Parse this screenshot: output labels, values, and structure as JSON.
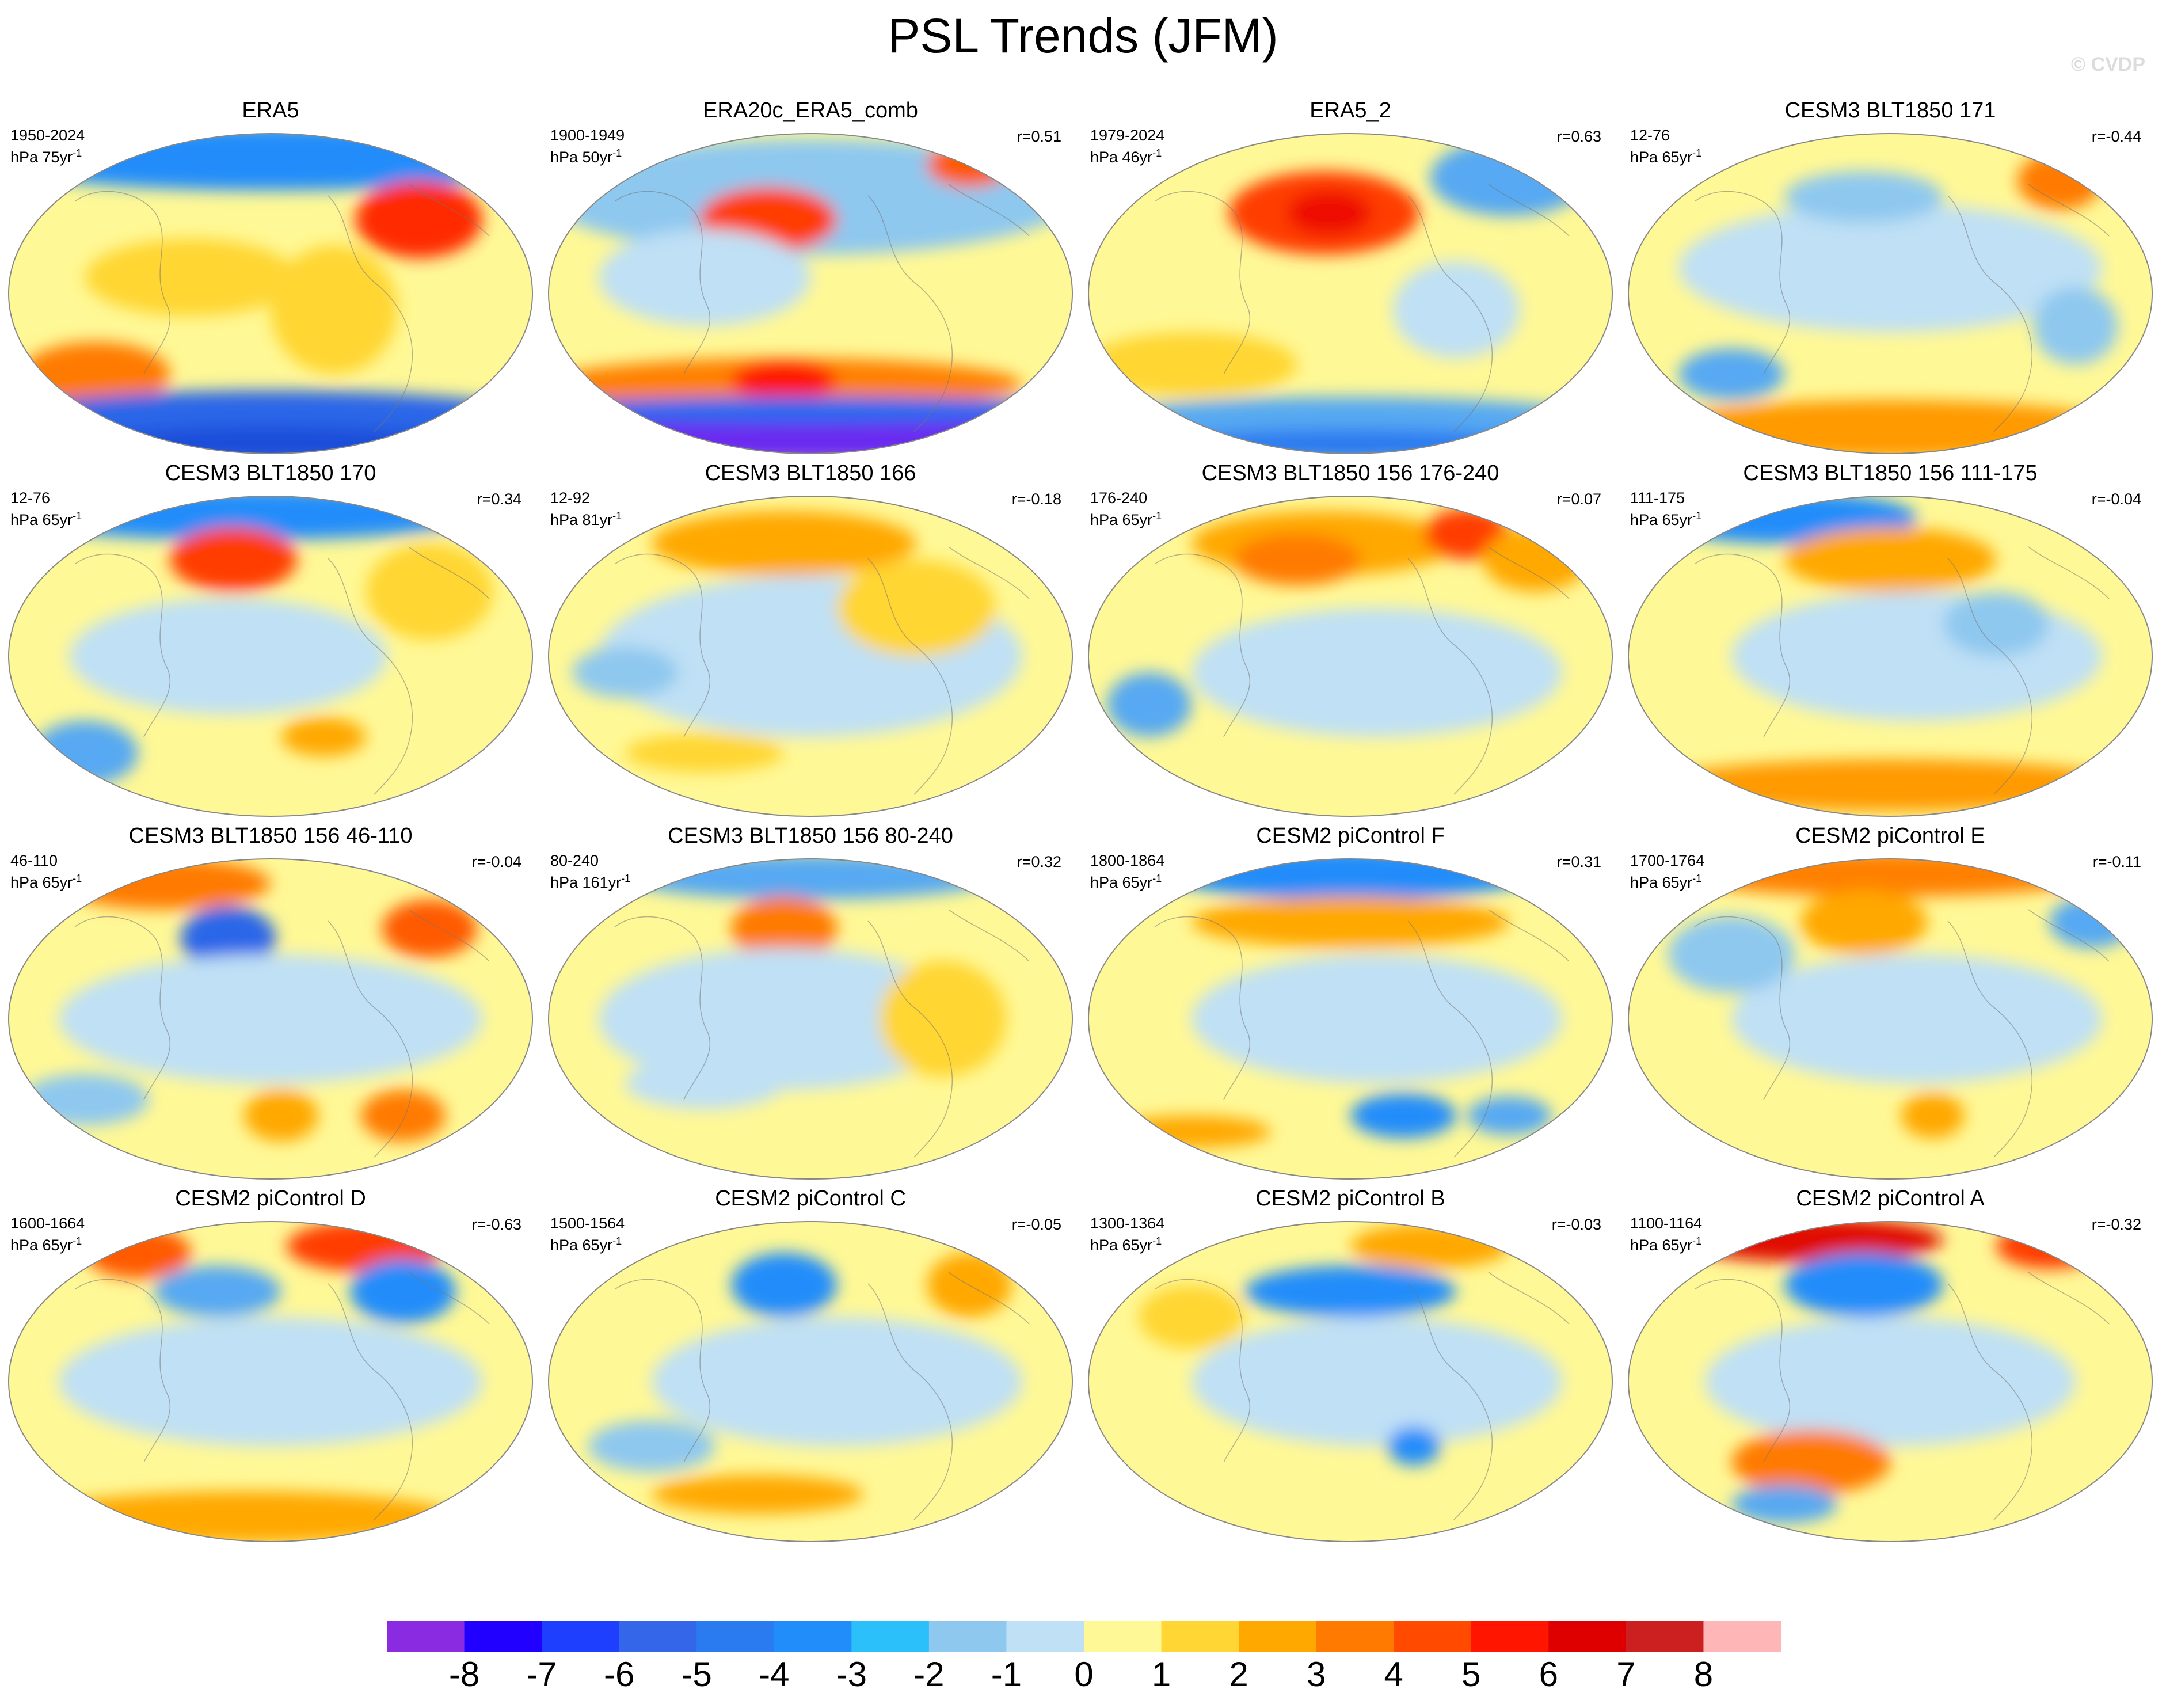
{
  "title": "PSL Trends (JFM)",
  "watermark": "© CVDP",
  "panels": [
    {
      "title": "ERA5",
      "years": "1950-2024",
      "unit_base": "hPa 75yr",
      "unit_exp": "-1",
      "r": "",
      "blobs": [
        [
          0.5,
          0.08,
          0.55,
          0.1,
          "#218dfa"
        ],
        [
          0.78,
          0.27,
          0.12,
          0.12,
          "#ff2b00"
        ],
        [
          0.17,
          0.75,
          0.14,
          0.1,
          "#ff7a00"
        ],
        [
          0.5,
          0.9,
          0.55,
          0.1,
          "#2966e8"
        ],
        [
          0.5,
          0.97,
          0.35,
          0.06,
          "#1f4dd9"
        ],
        [
          0.35,
          0.45,
          0.2,
          0.12,
          "#ffd633"
        ],
        [
          0.62,
          0.55,
          0.12,
          0.2,
          "#ffd633"
        ]
      ]
    },
    {
      "title": "ERA20c_ERA5_comb",
      "years": "1900-1949",
      "unit_base": "hPa 50yr",
      "unit_exp": "-1",
      "r": "r=0.51",
      "blobs": [
        [
          0.5,
          0.2,
          0.5,
          0.18,
          "#8ec8ef"
        ],
        [
          0.42,
          0.27,
          0.13,
          0.1,
          "#ff3d00"
        ],
        [
          0.8,
          0.1,
          0.08,
          0.07,
          "#ff5a00"
        ],
        [
          0.3,
          0.45,
          0.2,
          0.15,
          "#bfe0f5"
        ],
        [
          0.45,
          0.78,
          0.45,
          0.08,
          "#ff8000"
        ],
        [
          0.45,
          0.77,
          0.1,
          0.06,
          "#ff1500"
        ],
        [
          0.5,
          0.94,
          0.55,
          0.08,
          "#6a2cf0"
        ],
        [
          0.5,
          0.86,
          0.55,
          0.04,
          "#1f6bf0"
        ]
      ]
    },
    {
      "title": "ERA5_2",
      "years": "1979-2024",
      "unit_base": "hPa 46yr",
      "unit_exp": "-1",
      "r": "r=0.63",
      "blobs": [
        [
          0.45,
          0.25,
          0.18,
          0.13,
          "#ff3d00"
        ],
        [
          0.46,
          0.25,
          0.08,
          0.07,
          "#ee1000"
        ],
        [
          0.8,
          0.14,
          0.15,
          0.12,
          "#56a9f2"
        ],
        [
          0.2,
          0.72,
          0.2,
          0.1,
          "#ffd633"
        ],
        [
          0.5,
          0.9,
          0.5,
          0.08,
          "#56a9f2"
        ],
        [
          0.5,
          0.97,
          0.35,
          0.05,
          "#2a7af0"
        ],
        [
          0.7,
          0.55,
          0.12,
          0.15,
          "#bfe0f5"
        ]
      ]
    },
    {
      "title": "CESM3 BLT1850 171",
      "years": "12-76",
      "unit_base": "hPa 65yr",
      "unit_exp": "-1",
      "r": "r=-0.44",
      "blobs": [
        [
          0.5,
          0.42,
          0.4,
          0.2,
          "#bfe0f5"
        ],
        [
          0.82,
          0.15,
          0.08,
          0.09,
          "#ff7a00"
        ],
        [
          0.2,
          0.75,
          0.1,
          0.08,
          "#56a9f2"
        ],
        [
          0.5,
          0.92,
          0.45,
          0.09,
          "#ff9a00"
        ],
        [
          0.45,
          0.2,
          0.15,
          0.08,
          "#8ec8ef"
        ],
        [
          0.85,
          0.6,
          0.08,
          0.12,
          "#8ec8ef"
        ]
      ]
    },
    {
      "title": "CESM3 BLT1850 170",
      "years": "12-76",
      "unit_base": "hPa 65yr",
      "unit_exp": "-1",
      "r": "r=0.34",
      "blobs": [
        [
          0.45,
          0.06,
          0.45,
          0.08,
          "#218dfa"
        ],
        [
          0.43,
          0.2,
          0.12,
          0.1,
          "#ff3d00"
        ],
        [
          0.42,
          0.5,
          0.3,
          0.18,
          "#bfe0f5"
        ],
        [
          0.15,
          0.8,
          0.1,
          0.1,
          "#56a9f2"
        ],
        [
          0.6,
          0.75,
          0.08,
          0.06,
          "#ffa800"
        ],
        [
          0.8,
          0.3,
          0.12,
          0.15,
          "#ffd633"
        ]
      ]
    },
    {
      "title": "CESM3 BLT1850 166",
      "years": "12-92",
      "unit_base": "hPa 81yr",
      "unit_exp": "-1",
      "r": "r=-0.18",
      "blobs": [
        [
          0.45,
          0.15,
          0.25,
          0.1,
          "#ffa800"
        ],
        [
          0.5,
          0.5,
          0.4,
          0.25,
          "#bfe0f5"
        ],
        [
          0.15,
          0.55,
          0.1,
          0.08,
          "#8ec8ef"
        ],
        [
          0.3,
          0.8,
          0.15,
          0.06,
          "#ffd633"
        ],
        [
          0.7,
          0.35,
          0.15,
          0.15,
          "#ffd633"
        ]
      ]
    },
    {
      "title": "CESM3 BLT1850 156 176-240",
      "years": "176-240",
      "unit_base": "hPa 65yr",
      "unit_exp": "-1",
      "r": "r=0.07",
      "blobs": [
        [
          0.45,
          0.15,
          0.25,
          0.1,
          "#ffa800"
        ],
        [
          0.72,
          0.12,
          0.08,
          0.08,
          "#ff3d00"
        ],
        [
          0.55,
          0.55,
          0.35,
          0.2,
          "#bfe0f5"
        ],
        [
          0.12,
          0.65,
          0.08,
          0.1,
          "#56a9f2"
        ],
        [
          0.4,
          0.2,
          0.12,
          0.08,
          "#ff7a00"
        ],
        [
          0.85,
          0.2,
          0.1,
          0.1,
          "#ffa800"
        ]
      ]
    },
    {
      "title": "CESM3 BLT1850 156 111-175",
      "years": "111-175",
      "unit_base": "hPa 65yr",
      "unit_exp": "-1",
      "r": "r=-0.04",
      "blobs": [
        [
          0.3,
          0.07,
          0.25,
          0.08,
          "#218dfa"
        ],
        [
          0.5,
          0.2,
          0.2,
          0.1,
          "#ffa800"
        ],
        [
          0.55,
          0.5,
          0.35,
          0.2,
          "#bfe0f5"
        ],
        [
          0.5,
          0.9,
          0.45,
          0.08,
          "#ff9a00"
        ],
        [
          0.7,
          0.4,
          0.1,
          0.1,
          "#8ec8ef"
        ]
      ]
    },
    {
      "title": "CESM3 BLT1850 156 46-110",
      "years": "46-110",
      "unit_base": "hPa 65yr",
      "unit_exp": "-1",
      "r": "r=-0.04",
      "blobs": [
        [
          0.3,
          0.08,
          0.2,
          0.08,
          "#ff7a00"
        ],
        [
          0.42,
          0.25,
          0.09,
          0.1,
          "#2966e8"
        ],
        [
          0.8,
          0.22,
          0.09,
          0.09,
          "#ff5a00"
        ],
        [
          0.5,
          0.5,
          0.4,
          0.2,
          "#bfe0f5"
        ],
        [
          0.52,
          0.8,
          0.07,
          0.08,
          "#ffa800"
        ],
        [
          0.75,
          0.8,
          0.08,
          0.08,
          "#ff7a00"
        ],
        [
          0.15,
          0.75,
          0.12,
          0.08,
          "#8ec8ef"
        ]
      ]
    },
    {
      "title": "CESM3 BLT1850 156 80-240",
      "years": "80-240",
      "unit_base": "hPa 161yr",
      "unit_exp": "-1",
      "r": "r=0.32",
      "blobs": [
        [
          0.5,
          0.06,
          0.35,
          0.07,
          "#56a9f2"
        ],
        [
          0.45,
          0.22,
          0.1,
          0.1,
          "#ff7a00"
        ],
        [
          0.45,
          0.5,
          0.35,
          0.22,
          "#bfe0f5"
        ],
        [
          0.3,
          0.7,
          0.15,
          0.08,
          "#bfe0f5"
        ],
        [
          0.75,
          0.5,
          0.12,
          0.18,
          "#ffd633"
        ]
      ]
    },
    {
      "title": "CESM2 piControl F",
      "years": "1800-1864",
      "unit_base": "hPa 65yr",
      "unit_exp": "-1",
      "r": "r=0.31",
      "blobs": [
        [
          0.5,
          0.05,
          0.35,
          0.08,
          "#218dfa"
        ],
        [
          0.5,
          0.2,
          0.3,
          0.08,
          "#ffa800"
        ],
        [
          0.55,
          0.5,
          0.35,
          0.2,
          "#bfe0f5"
        ],
        [
          0.6,
          0.8,
          0.1,
          0.07,
          "#218dfa"
        ],
        [
          0.8,
          0.8,
          0.08,
          0.06,
          "#56a9f2"
        ],
        [
          0.2,
          0.85,
          0.15,
          0.05,
          "#ffa800"
        ]
      ]
    },
    {
      "title": "CESM2 piControl E",
      "years": "1700-1764",
      "unit_base": "hPa 65yr",
      "unit_exp": "-1",
      "r": "r=-0.11",
      "blobs": [
        [
          0.5,
          0.05,
          0.4,
          0.07,
          "#ff8000"
        ],
        [
          0.88,
          0.2,
          0.08,
          0.08,
          "#56a9f2"
        ],
        [
          0.45,
          0.2,
          0.12,
          0.1,
          "#ffa800"
        ],
        [
          0.55,
          0.5,
          0.35,
          0.2,
          "#bfe0f5"
        ],
        [
          0.58,
          0.8,
          0.06,
          0.07,
          "#ffa800"
        ],
        [
          0.2,
          0.3,
          0.12,
          0.12,
          "#8ec8ef"
        ]
      ]
    },
    {
      "title": "CESM2 piControl D",
      "years": "1600-1664",
      "unit_base": "hPa 65yr",
      "unit_exp": "-1",
      "r": "r=-0.63",
      "blobs": [
        [
          0.25,
          0.1,
          0.1,
          0.08,
          "#ff5a00"
        ],
        [
          0.68,
          0.08,
          0.15,
          0.08,
          "#ff3d00"
        ],
        [
          0.75,
          0.22,
          0.1,
          0.1,
          "#218dfa"
        ],
        [
          0.4,
          0.22,
          0.12,
          0.08,
          "#56a9f2"
        ],
        [
          0.5,
          0.5,
          0.4,
          0.2,
          "#bfe0f5"
        ],
        [
          0.45,
          0.92,
          0.4,
          0.08,
          "#ffa800"
        ]
      ]
    },
    {
      "title": "CESM2 piControl C",
      "years": "1500-1564",
      "unit_base": "hPa 65yr",
      "unit_exp": "-1",
      "r": "r=-0.05",
      "blobs": [
        [
          0.45,
          0.2,
          0.1,
          0.1,
          "#218dfa"
        ],
        [
          0.55,
          0.5,
          0.35,
          0.2,
          "#bfe0f5"
        ],
        [
          0.4,
          0.85,
          0.2,
          0.06,
          "#ffa800"
        ],
        [
          0.8,
          0.2,
          0.08,
          0.1,
          "#ffa800"
        ],
        [
          0.2,
          0.7,
          0.12,
          0.08,
          "#8ec8ef"
        ]
      ]
    },
    {
      "title": "CESM2 piControl B",
      "years": "1300-1364",
      "unit_base": "hPa 65yr",
      "unit_exp": "-1",
      "r": "r=-0.03",
      "blobs": [
        [
          0.65,
          0.08,
          0.15,
          0.07,
          "#ffa800"
        ],
        [
          0.5,
          0.22,
          0.2,
          0.08,
          "#218dfa"
        ],
        [
          0.55,
          0.5,
          0.35,
          0.2,
          "#bfe0f5"
        ],
        [
          0.62,
          0.7,
          0.05,
          0.06,
          "#218dfa"
        ],
        [
          0.2,
          0.3,
          0.1,
          0.1,
          "#ffd633"
        ]
      ]
    },
    {
      "title": "CESM2 piControl A",
      "years": "1100-1164",
      "unit_base": "hPa 65yr",
      "unit_exp": "-1",
      "r": "r=-0.32",
      "blobs": [
        [
          0.35,
          0.06,
          0.25,
          0.07,
          "#e01000"
        ],
        [
          0.8,
          0.08,
          0.1,
          0.07,
          "#ff3d00"
        ],
        [
          0.45,
          0.2,
          0.15,
          0.1,
          "#218dfa"
        ],
        [
          0.5,
          0.5,
          0.35,
          0.2,
          "#bfe0f5"
        ],
        [
          0.35,
          0.75,
          0.15,
          0.1,
          "#ff7a00"
        ],
        [
          0.3,
          0.88,
          0.1,
          0.06,
          "#56a9f2"
        ]
      ]
    }
  ],
  "legend": {
    "colors": [
      "#8a2be2",
      "#2200ff",
      "#1f3fff",
      "#3366e8",
      "#2a7af0",
      "#218dfa",
      "#2bc0fa",
      "#8ec8ef",
      "#bfe0f5",
      "#fff896",
      "#ffd633",
      "#ffa800",
      "#ff7a00",
      "#ff4a00",
      "#ff1500",
      "#de0000",
      "#cc2020",
      "#ffb6b6"
    ],
    "ticks": [
      "-8",
      "-7",
      "-6",
      "-5",
      "-4",
      "-3",
      "-2",
      "-1",
      "0",
      "1",
      "2",
      "3",
      "4",
      "5",
      "6",
      "7",
      "8"
    ]
  }
}
